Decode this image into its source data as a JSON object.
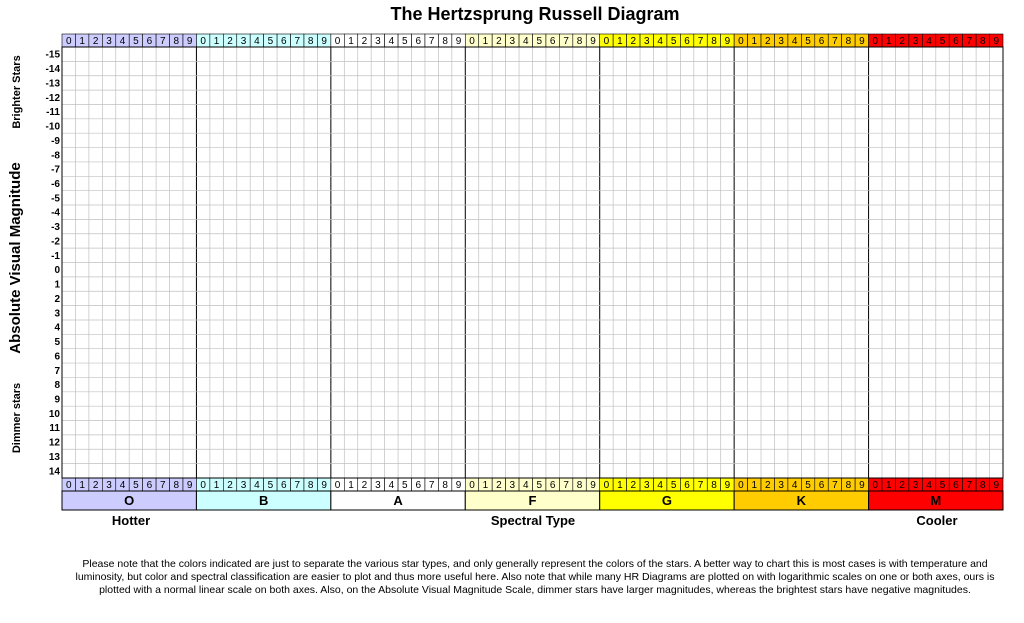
{
  "chart_data": {
    "type": "scatter",
    "title": "The Hertzsprung Russell Diagram",
    "xlabel": "Spectral Type",
    "ylabel": "Absolute Visual Magnitude",
    "x_low_label": "Hotter",
    "x_high_label": "Cooler",
    "y_top_label": "Brighter Stars",
    "y_bottom_label": "Dimmer stars",
    "spectral_classes": [
      {
        "name": "O",
        "color": "#ccccff"
      },
      {
        "name": "B",
        "color": "#ccffff"
      },
      {
        "name": "A",
        "color": "#ffffff"
      },
      {
        "name": "F",
        "color": "#ffffcc"
      },
      {
        "name": "G",
        "color": "#ffff00"
      },
      {
        "name": "K",
        "color": "#ffcc00"
      },
      {
        "name": "M",
        "color": "#ff0000"
      }
    ],
    "subclasses": [
      "0",
      "1",
      "2",
      "3",
      "4",
      "5",
      "6",
      "7",
      "8",
      "9"
    ],
    "magnitudes": [
      "-15",
      "-14",
      "-13",
      "-12",
      "-11",
      "-10",
      "-9",
      "-8",
      "-7",
      "-6",
      "-5",
      "-4",
      "-3",
      "-2",
      "-1",
      "0",
      "1",
      "2",
      "3",
      "4",
      "5",
      "6",
      "7",
      "8",
      "9",
      "10",
      "11",
      "12",
      "13",
      "14"
    ],
    "ylim": [
      -15,
      14
    ],
    "grid": true,
    "series": []
  },
  "note": "Please note that the colors indicated are just to separate the various star types, and only generally represent the colors of the stars. A better way to chart this is most cases is with temperature and luminosity, but  color and spectral classification are easier to plot and thus more useful here. Also note that while many HR Diagrams are plotted on with logarithmic scales on one or both axes, ours is plotted with a normal linear scale on both axes. Also, on the Absolute Visual Magnitude Scale, dimmer stars have larger magnitudes, whereas the brightest stars have negative magnitudes."
}
